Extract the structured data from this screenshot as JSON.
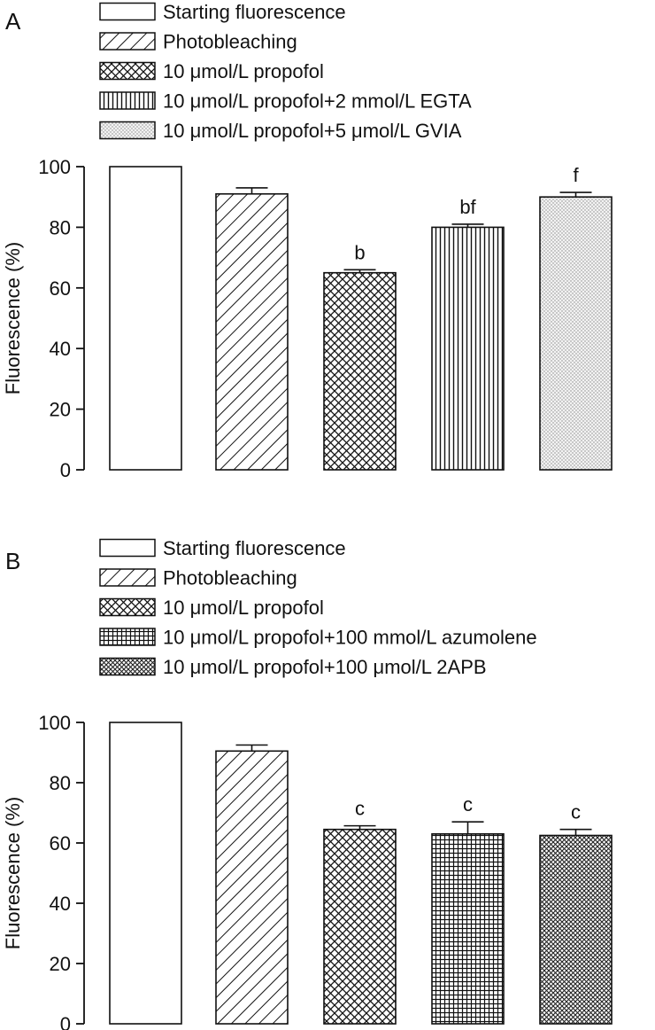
{
  "chart_data": [
    {
      "type": "bar",
      "panel_label": "A",
      "ylabel": "Fluorescence (%)",
      "ylim": [
        0,
        100
      ],
      "yticks": [
        0,
        20,
        40,
        60,
        80,
        100
      ],
      "legend_position": "top-left",
      "categories": [
        "Starting fluorescence",
        "Photobleaching",
        "10 μmol/L propofol",
        "10 μmol/L propofol+2 mmol/L EGTA",
        "10 μmol/L propofol+5 μmol/L GVIA"
      ],
      "patterns": [
        "blank",
        "diag",
        "crosshatch",
        "vertical",
        "dots"
      ],
      "values": [
        100,
        91,
        65,
        80,
        90
      ],
      "errors": [
        0,
        2,
        1,
        1,
        1.5
      ],
      "annotations": [
        "",
        "",
        "b",
        "bf",
        "f"
      ]
    },
    {
      "type": "bar",
      "panel_label": "B",
      "ylabel": "Fluorescence (%)",
      "ylim": [
        0,
        100
      ],
      "yticks": [
        0,
        20,
        40,
        60,
        80,
        100
      ],
      "legend_position": "top-left",
      "categories": [
        "Starting fluorescence",
        "Photobleaching",
        "10 μmol/L propofol",
        "10 μmol/L propofol+100 mmol/L azumolene",
        "10 μmol/L propofol+100 μmol/L 2APB"
      ],
      "patterns": [
        "blank",
        "diag",
        "crosshatch",
        "grid",
        "finecross"
      ],
      "values": [
        100,
        90.5,
        64.5,
        63,
        62.5
      ],
      "errors": [
        0,
        2,
        1.2,
        4,
        2
      ],
      "annotations": [
        "",
        "",
        "c",
        "c",
        "c"
      ]
    }
  ]
}
